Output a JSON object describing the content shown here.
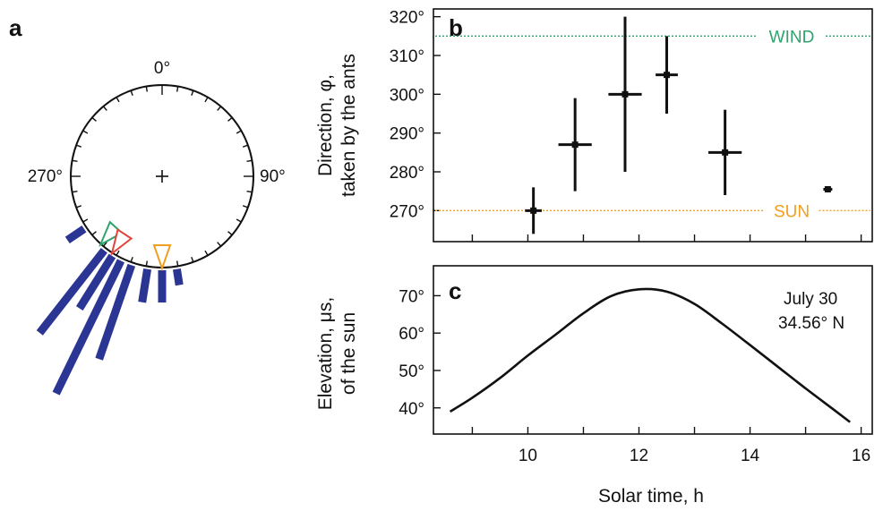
{
  "panel_labels": {
    "a": "a",
    "b": "b",
    "c": "c"
  },
  "shared_xlabel": "Solar time, h",
  "colors": {
    "bars": "#2b3594",
    "wind": "#2ea36b",
    "sun": "#f0a020",
    "red_marker": "#e0443a",
    "ink": "#111111"
  },
  "chart_data": [
    {
      "id": "a",
      "type": "polar-histogram",
      "title": "",
      "angle_labels": [
        {
          "text": "0°",
          "angle": 0
        },
        {
          "text": "90°",
          "angle": 90
        },
        {
          "text": "270°",
          "angle": 270
        }
      ],
      "bars": [
        {
          "angle": 236,
          "length": 0.15
        },
        {
          "angle": 218,
          "length": 0.78
        },
        {
          "angle": 212,
          "length": 0.46
        },
        {
          "angle": 206,
          "length": 1.1
        },
        {
          "angle": 199,
          "length": 0.74
        },
        {
          "angle": 189,
          "length": 0.25
        },
        {
          "angle": 180,
          "length": 0.24
        },
        {
          "angle": 171,
          "length": 0.12
        }
      ],
      "markers": [
        {
          "name": "wind",
          "angle": 222,
          "color": "#2ea36b"
        },
        {
          "name": "ants",
          "angle": 213,
          "color": "#e0443a"
        },
        {
          "name": "sun",
          "angle": 180,
          "color": "#f0a020"
        }
      ]
    },
    {
      "id": "b",
      "type": "scatter",
      "ylabel_lines": [
        "Direction, φ,",
        "taken by the ants"
      ],
      "xlim": [
        8.3,
        16.2
      ],
      "ylim": [
        262,
        322
      ],
      "yticks": [
        270,
        280,
        290,
        300,
        310,
        320
      ],
      "ytick_labels": [
        "270°",
        "280°",
        "290°",
        "300°",
        "310°",
        "320°"
      ],
      "xticks": [
        9,
        10,
        11,
        12,
        13,
        14,
        15,
        16
      ],
      "points": [
        {
          "x": 10.1,
          "y": 270,
          "xerr": 0.15,
          "yerr_low": 6,
          "yerr_high": 6
        },
        {
          "x": 10.85,
          "y": 287,
          "xerr": 0.3,
          "yerr_low": 12,
          "yerr_high": 12
        },
        {
          "x": 11.75,
          "y": 300,
          "xerr": 0.3,
          "yerr_low": 20,
          "yerr_high": 20
        },
        {
          "x": 12.5,
          "y": 305,
          "xerr": 0.2,
          "yerr_low": 10,
          "yerr_high": 10
        },
        {
          "x": 13.55,
          "y": 285,
          "xerr": 0.3,
          "yerr_low": 11,
          "yerr_high": 11
        },
        {
          "x": 15.4,
          "y": 275.5,
          "xerr": 0.08,
          "yerr_low": 0,
          "yerr_high": 0
        }
      ],
      "reference_lines": [
        {
          "label": "WIND",
          "y": 315,
          "color": "#2ea36b"
        },
        {
          "label": "SUN",
          "y": 270,
          "color": "#f0a020"
        }
      ]
    },
    {
      "id": "c",
      "type": "line",
      "ylabel_lines": [
        "Elevation, μs,",
        "of the sun"
      ],
      "xlim": [
        8.3,
        16.2
      ],
      "ylim": [
        33,
        78
      ],
      "yticks": [
        40,
        50,
        60,
        70
      ],
      "ytick_labels": [
        "40°",
        "50°",
        "60°",
        "70°"
      ],
      "xticks": [
        9,
        10,
        11,
        12,
        13,
        14,
        15,
        16
      ],
      "xtick_labels": [
        "10",
        "12",
        "14",
        "16"
      ],
      "xtick_label_values": [
        10,
        12,
        14,
        16
      ],
      "annotation_lines": [
        "July 30",
        "34.56° N"
      ],
      "x": [
        8.6,
        9.0,
        9.5,
        10.0,
        10.5,
        11.0,
        11.5,
        12.0,
        12.5,
        13.0,
        13.5,
        14.0,
        14.5,
        15.0,
        15.5,
        15.8
      ],
      "y": [
        39,
        42.7,
        48.0,
        54.0,
        59.6,
        65.3,
        69.9,
        71.7,
        71.1,
        67.8,
        62.5,
        56.8,
        51.0,
        45.2,
        39.6,
        36.2
      ]
    }
  ]
}
